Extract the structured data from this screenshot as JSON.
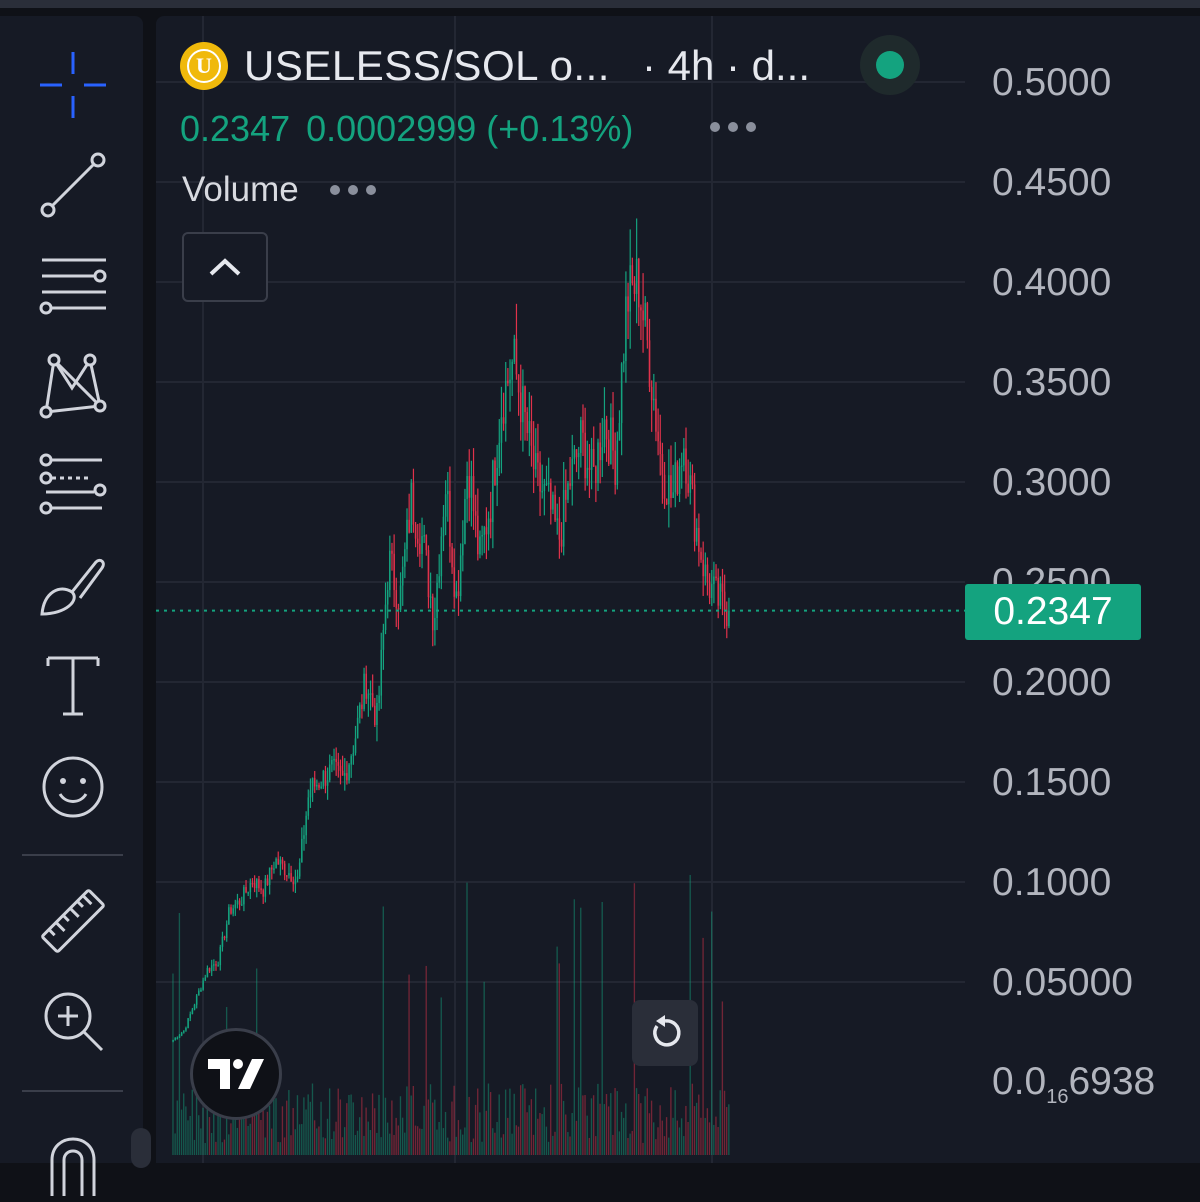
{
  "header": {
    "symbol": "USELESS/SOL o...",
    "interval": "· 4h · d...",
    "coin_letter": "U"
  },
  "ohlc": {
    "last": "0.2347",
    "change": "0.0002999 (+0.13%)"
  },
  "indicators": {
    "volume_label": "Volume"
  },
  "price_axis": {
    "labels": [
      "0.5000",
      "0.4500",
      "0.4000",
      "0.3500",
      "0.3000",
      "0.2500",
      "0.2000",
      "0.1500",
      "0.1000",
      "0.05000"
    ],
    "bottom_label": {
      "prefix": "0.0",
      "sub": "16",
      "suffix": "6938"
    },
    "current_price": "0.2347"
  },
  "toolbar": {
    "tools": [
      "crosshair-icon",
      "trend-line-icon",
      "horizontal-lines-icon",
      "pattern-icon",
      "fib-retracement-icon",
      "brush-icon",
      "text-icon",
      "emoji-icon",
      "ruler-icon",
      "zoom-in-icon",
      "magnet-icon"
    ]
  },
  "colors": {
    "up": "#14a37f",
    "down": "#e0324b",
    "accent": "#2962ff",
    "price_tag": "#14a37f",
    "coin": "#f0b90b"
  },
  "chart_data": {
    "type": "candlestick",
    "interval": "4h",
    "y_axis": {
      "min": 0,
      "max": 0.5,
      "ticks": [
        0.05,
        0.1,
        0.15,
        0.2,
        0.25,
        0.3,
        0.35,
        0.4,
        0.45,
        0.5
      ]
    },
    "last_price": 0.2347,
    "close_path": [
      {
        "p": 0.02
      },
      {
        "p": 0.025
      },
      {
        "p": 0.04
      },
      {
        "p": 0.055
      },
      {
        "p": 0.06
      },
      {
        "p": 0.085
      },
      {
        "p": 0.09
      },
      {
        "p": 0.1
      },
      {
        "p": 0.095
      },
      {
        "p": 0.11
      },
      {
        "p": 0.105
      },
      {
        "p": 0.1
      },
      {
        "p": 0.145
      },
      {
        "p": 0.15
      },
      {
        "p": 0.155
      },
      {
        "p": 0.15
      },
      {
        "p": 0.17
      },
      {
        "p": 0.2
      },
      {
        "p": 0.18
      },
      {
        "p": 0.26
      },
      {
        "p": 0.24
      },
      {
        "p": 0.29
      },
      {
        "p": 0.27
      },
      {
        "p": 0.23
      },
      {
        "p": 0.3
      },
      {
        "p": 0.24
      },
      {
        "p": 0.31
      },
      {
        "p": 0.26
      },
      {
        "p": 0.29
      },
      {
        "p": 0.34
      },
      {
        "p": 0.36
      },
      {
        "p": 0.33
      },
      {
        "p": 0.3
      },
      {
        "p": 0.29
      },
      {
        "p": 0.27
      },
      {
        "p": 0.3
      },
      {
        "p": 0.32
      },
      {
        "p": 0.3
      },
      {
        "p": 0.33
      },
      {
        "p": 0.31
      },
      {
        "p": 0.39
      },
      {
        "p": 0.4
      },
      {
        "p": 0.36
      },
      {
        "p": 0.31
      },
      {
        "p": 0.29
      },
      {
        "p": 0.32
      },
      {
        "p": 0.28
      },
      {
        "p": 0.25
      },
      {
        "p": 0.24
      },
      {
        "p": 0.2347
      }
    ]
  }
}
